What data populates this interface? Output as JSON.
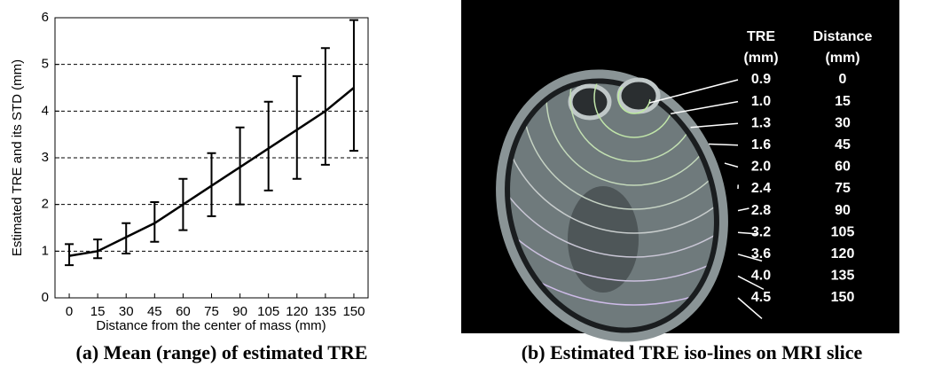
{
  "chart_data": {
    "type": "line",
    "caption": "(a) Mean (range) of estimated TRE",
    "xlabel": "Distance from the center of mass (mm)",
    "ylabel": "Estimated TRE and its STD (mm)",
    "x": [
      0,
      15,
      30,
      45,
      60,
      75,
      90,
      105,
      120,
      135,
      150
    ],
    "xlim": [
      -7.5,
      157.5
    ],
    "xticks": [
      0,
      15,
      30,
      45,
      60,
      75,
      90,
      105,
      120,
      135,
      150
    ],
    "ylim": [
      0,
      6
    ],
    "yticks": [
      0,
      1,
      2,
      3,
      4,
      5,
      6
    ],
    "grid": true,
    "series": [
      {
        "color": "#000000",
        "values": [
          0.9,
          1.0,
          1.3,
          1.6,
          2.0,
          2.4,
          2.8,
          3.2,
          3.6,
          4.0,
          4.5
        ],
        "lower": [
          0.7,
          0.85,
          0.95,
          1.2,
          1.45,
          1.75,
          2.0,
          2.3,
          2.55,
          2.85,
          3.15
        ],
        "upper": [
          1.15,
          1.25,
          1.6,
          2.05,
          2.55,
          3.1,
          3.65,
          4.2,
          4.75,
          5.35,
          5.95
        ]
      }
    ]
  },
  "panel_b": {
    "caption": "(b) Estimated TRE iso-lines on MRI slice",
    "headers": [
      [
        "TRE",
        "(mm)"
      ],
      [
        "Distance",
        "(mm)"
      ]
    ],
    "rows": [
      [
        "0.9",
        "0"
      ],
      [
        "1.0",
        "15"
      ],
      [
        "1.3",
        "30"
      ],
      [
        "1.6",
        "45"
      ],
      [
        "2.0",
        "60"
      ],
      [
        "2.4",
        "75"
      ],
      [
        "2.8",
        "90"
      ],
      [
        "3.2",
        "105"
      ],
      [
        "3.6",
        "120"
      ],
      [
        "4.0",
        "135"
      ],
      [
        "4.5",
        "150"
      ]
    ]
  }
}
